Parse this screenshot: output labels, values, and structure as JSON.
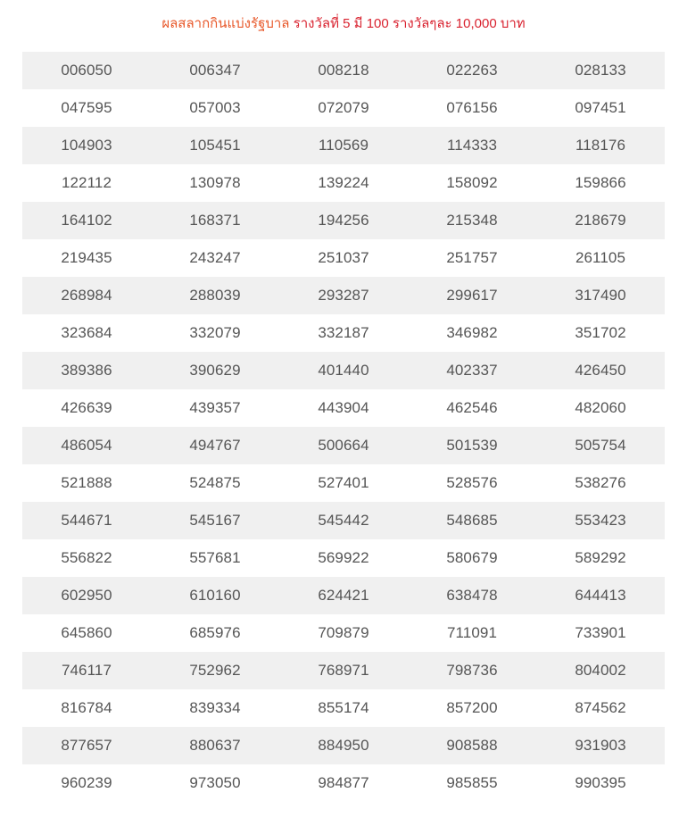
{
  "title": {
    "part1": "ผลสลากกินแบ่งรัฐบาล",
    "part2": "รางวัลที่ 5 มี 100 รางวัลๆละ 10,000 บาท"
  },
  "colors": {
    "title_orange": "#e8582a",
    "title_red": "#d9222f",
    "row_stripe": "#f0f0f0",
    "number_text": "#555555"
  },
  "rows": [
    [
      "006050",
      "006347",
      "008218",
      "022263",
      "028133"
    ],
    [
      "047595",
      "057003",
      "072079",
      "076156",
      "097451"
    ],
    [
      "104903",
      "105451",
      "110569",
      "114333",
      "118176"
    ],
    [
      "122112",
      "130978",
      "139224",
      "158092",
      "159866"
    ],
    [
      "164102",
      "168371",
      "194256",
      "215348",
      "218679"
    ],
    [
      "219435",
      "243247",
      "251037",
      "251757",
      "261105"
    ],
    [
      "268984",
      "288039",
      "293287",
      "299617",
      "317490"
    ],
    [
      "323684",
      "332079",
      "332187",
      "346982",
      "351702"
    ],
    [
      "389386",
      "390629",
      "401440",
      "402337",
      "426450"
    ],
    [
      "426639",
      "439357",
      "443904",
      "462546",
      "482060"
    ],
    [
      "486054",
      "494767",
      "500664",
      "501539",
      "505754"
    ],
    [
      "521888",
      "524875",
      "527401",
      "528576",
      "538276"
    ],
    [
      "544671",
      "545167",
      "545442",
      "548685",
      "553423"
    ],
    [
      "556822",
      "557681",
      "569922",
      "580679",
      "589292"
    ],
    [
      "602950",
      "610160",
      "624421",
      "638478",
      "644413"
    ],
    [
      "645860",
      "685976",
      "709879",
      "711091",
      "733901"
    ],
    [
      "746117",
      "752962",
      "768971",
      "798736",
      "804002"
    ],
    [
      "816784",
      "839334",
      "855174",
      "857200",
      "874562"
    ],
    [
      "877657",
      "880637",
      "884950",
      "908588",
      "931903"
    ],
    [
      "960239",
      "973050",
      "984877",
      "985855",
      "990395"
    ]
  ]
}
